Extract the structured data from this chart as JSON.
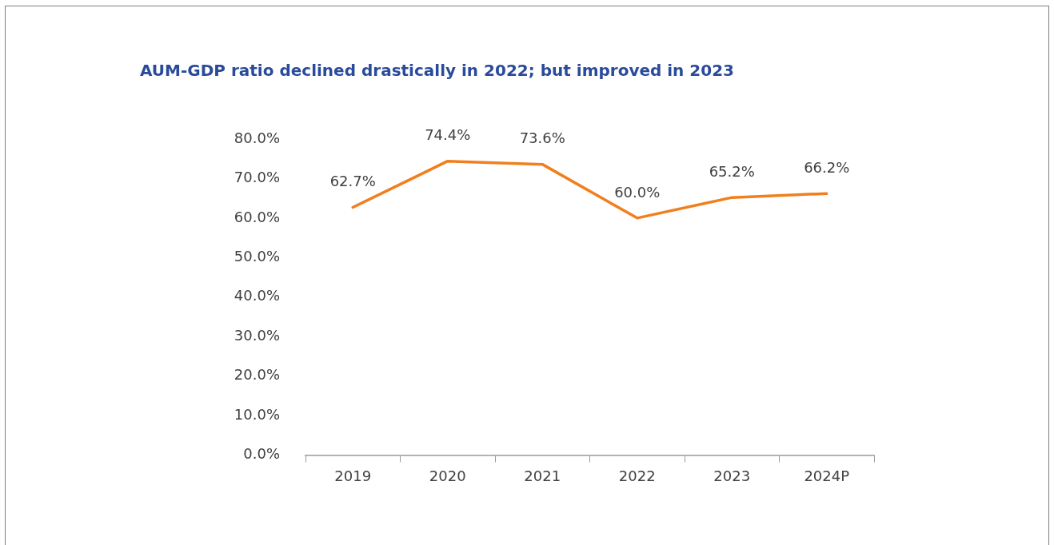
{
  "chart_data": {
    "type": "line",
    "title": "AUM-GDP ratio declined drastically in 2022; but improved in 2023",
    "categories": [
      "2019",
      "2020",
      "2021",
      "2022",
      "2023",
      "2024P"
    ],
    "series": [
      {
        "color": "#f07f1e",
        "values": [
          62.7,
          74.4,
          73.6,
          60.0,
          65.2,
          66.2
        ],
        "value_labels": [
          "62.7%",
          "74.4%",
          "73.6%",
          "60.0%",
          "65.2%",
          "66.2%"
        ]
      }
    ],
    "ylim": [
      0,
      80
    ],
    "yticks": [
      {
        "value": 0,
        "label": "0.0%"
      },
      {
        "value": 10,
        "label": "10.0%"
      },
      {
        "value": 20,
        "label": "20.0%"
      },
      {
        "value": 30,
        "label": "30.0%"
      },
      {
        "value": 40,
        "label": "40.0%"
      },
      {
        "value": 50,
        "label": "50.0%"
      },
      {
        "value": 60,
        "label": "60.0%"
      },
      {
        "value": 70,
        "label": "70.0%"
      },
      {
        "value": 80,
        "label": "80.0%"
      }
    ],
    "grid": false,
    "legend": false,
    "marker": "none",
    "line_style": "solid"
  }
}
